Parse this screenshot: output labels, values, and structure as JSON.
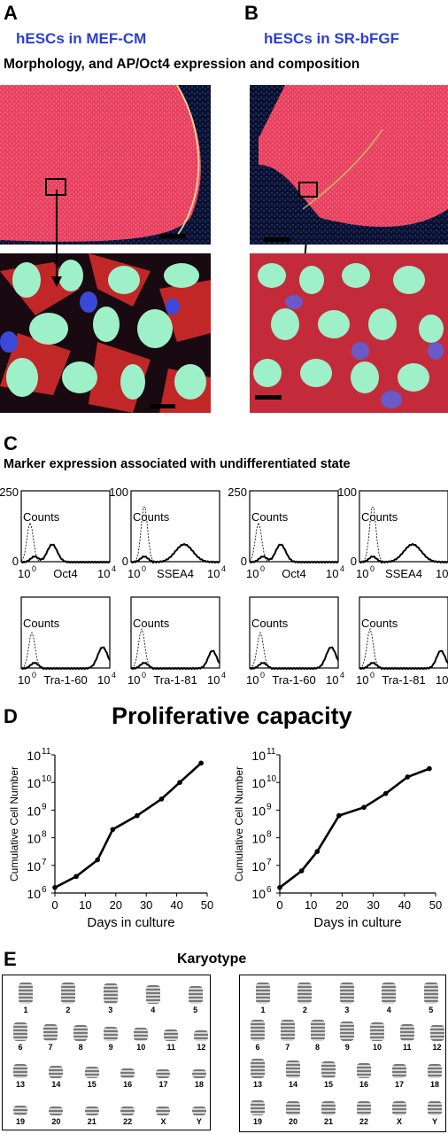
{
  "panels": {
    "A": {
      "letter": "A",
      "title": "hESCs in MEF-CM"
    },
    "B": {
      "letter": "B",
      "title": "hESCs in SR-bFGF"
    },
    "C": {
      "letter": "C",
      "title": "Marker expression associated with undifferentiated state"
    },
    "D": {
      "letter": "D",
      "title": "Proliferative capacity"
    },
    "E": {
      "letter": "E",
      "title": "Karyotype"
    }
  },
  "section_ab_title": "Morphology, and AP/Oct4 expression and composition",
  "colors": {
    "panel_title_blue": "#2b3fd6",
    "colony_red": "#e8415f",
    "nuclei_green": "#9ef0c8",
    "background_navy": "#0a1030"
  },
  "flow": {
    "ylabel": "Counts",
    "xmin_label": "10",
    "xmin_exp": "0",
    "xmax_label": "10",
    "xmax_exp": "4",
    "groups": [
      {
        "plots": [
          {
            "marker": "Oct4",
            "ymax": "250"
          },
          {
            "marker": "SSEA4",
            "ymax": "100"
          },
          {
            "marker": "Tra-1-60",
            "ymax": ""
          },
          {
            "marker": "Tra-1-81",
            "ymax": ""
          }
        ]
      },
      {
        "plots": [
          {
            "marker": "Oct4",
            "ymax": "250"
          },
          {
            "marker": "SSEA4",
            "ymax": "100"
          },
          {
            "marker": "Tra-1-60",
            "ymax": ""
          },
          {
            "marker": "Tra-1-81",
            "ymax": ""
          }
        ]
      }
    ]
  },
  "chart_data": [
    {
      "type": "line",
      "xlabel": "Days in culture",
      "ylabel": "Cumulative Cell Number",
      "x_ticks": [
        0,
        10,
        20,
        30,
        40,
        50
      ],
      "y_tick_exponents": [
        6,
        7,
        8,
        9,
        10,
        11
      ],
      "y_scale": "log10",
      "xlim": [
        0,
        50
      ],
      "ylim_log10": [
        6,
        11
      ],
      "series": [
        {
          "x": [
            0,
            7,
            14,
            19,
            27,
            35,
            41,
            48
          ],
          "y_log10": [
            6.2,
            6.6,
            7.2,
            8.3,
            8.8,
            9.4,
            10.0,
            10.7
          ]
        }
      ]
    },
    {
      "type": "line",
      "xlabel": "Days in culture",
      "ylabel": "Cumulative Cell Number",
      "x_ticks": [
        0,
        10,
        20,
        30,
        40,
        50
      ],
      "y_tick_exponents": [
        6,
        7,
        8,
        9,
        10,
        11
      ],
      "y_scale": "log10",
      "xlim": [
        0,
        50
      ],
      "ylim_log10": [
        6,
        11
      ],
      "series": [
        {
          "x": [
            0,
            7,
            12,
            19,
            27,
            34,
            41,
            48
          ],
          "y_log10": [
            6.2,
            6.8,
            7.5,
            8.8,
            9.1,
            9.6,
            10.2,
            10.5
          ]
        }
      ]
    }
  ],
  "karyotype": {
    "left": {
      "rows": [
        [
          "1",
          "2",
          "3",
          "4",
          "5"
        ],
        [
          "6",
          "7",
          "8",
          "9",
          "10",
          "11",
          "12"
        ],
        [
          "13",
          "14",
          "15",
          "16",
          "17",
          "18"
        ],
        [
          "19",
          "20",
          "21",
          "22",
          "X",
          "Y"
        ]
      ]
    },
    "right": {
      "rows": [
        [
          "1",
          "2",
          "3",
          "4",
          "5"
        ],
        [
          "6",
          "7",
          "8",
          "9",
          "10",
          "11",
          "12"
        ],
        [
          "13",
          "14",
          "15",
          "16",
          "17",
          "18"
        ],
        [
          "19",
          "20",
          "21",
          "22",
          "X",
          "Y"
        ]
      ]
    }
  }
}
